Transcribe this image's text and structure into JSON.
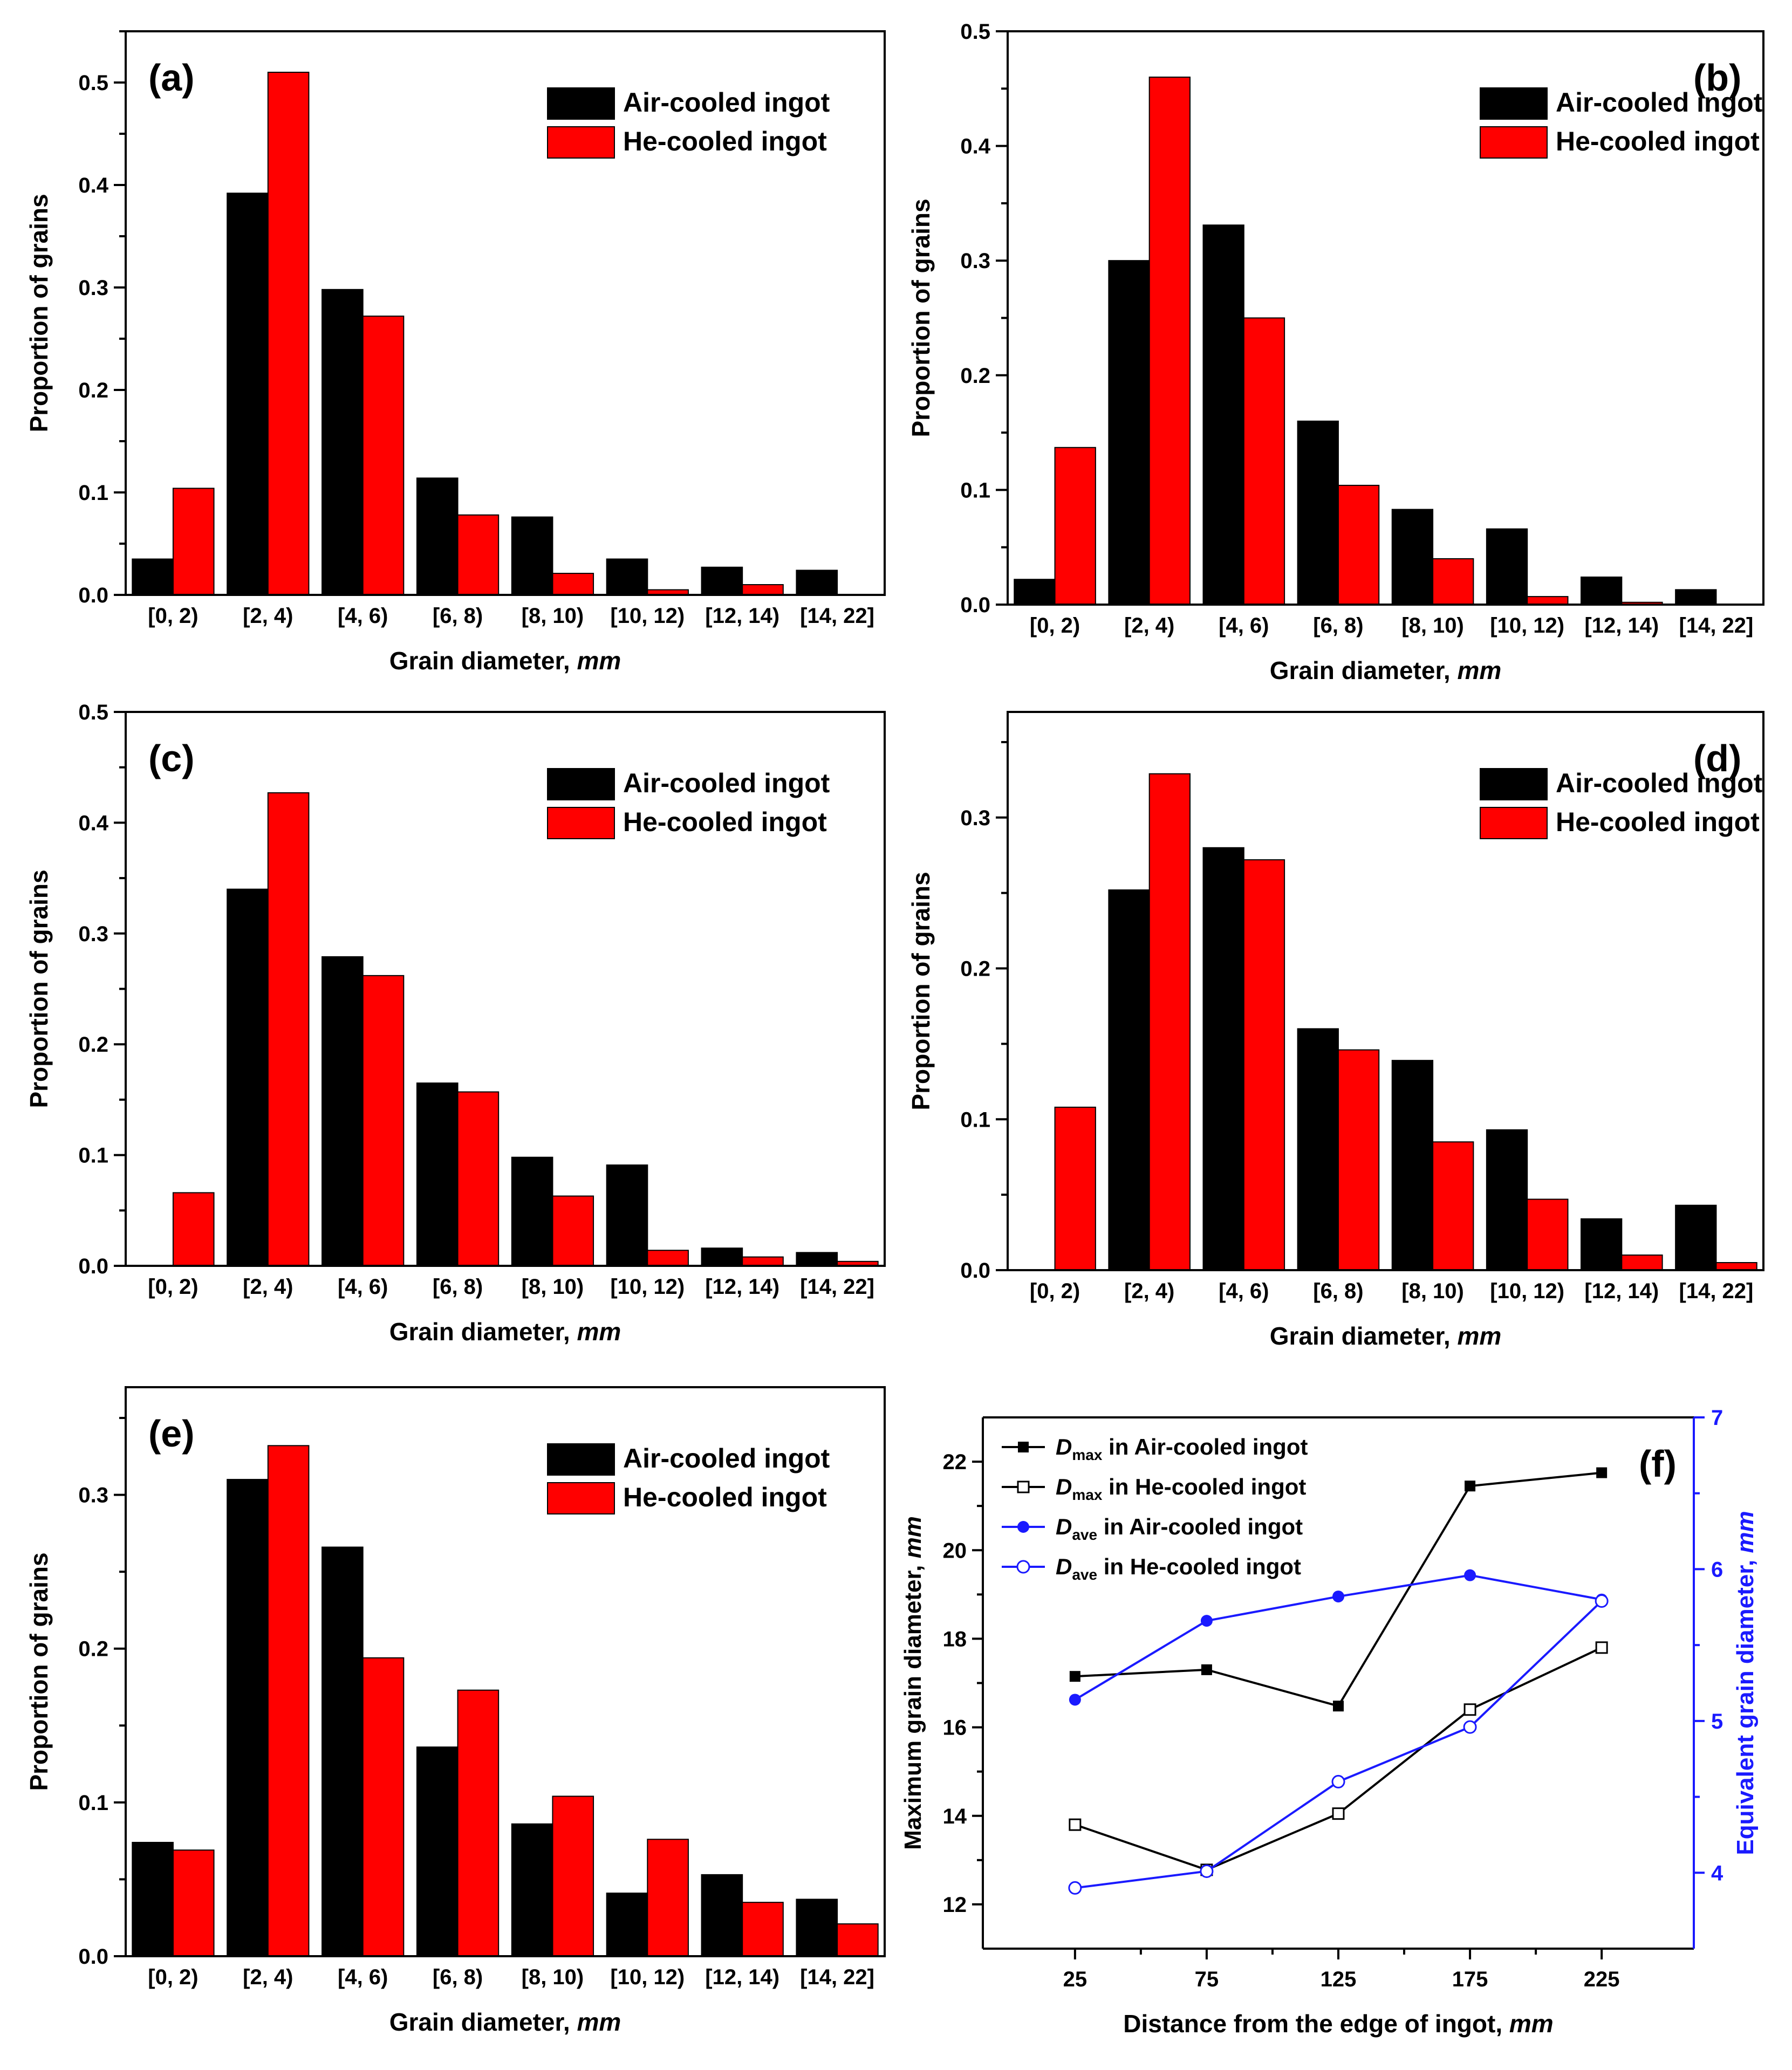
{
  "colors": {
    "air": "#000000",
    "he": "#ff0000",
    "blue": "#1a1aff",
    "axis": "#000000"
  },
  "chart_data": [
    {
      "panel_label": "(a)",
      "type": "bar",
      "title": "",
      "xlabel": "Grain diameter,",
      "xunit": "mm",
      "ylabel": "Proportion of grains",
      "ylim": [
        0,
        0.55
      ],
      "yticks": [
        "0.0",
        "0.1",
        "0.2",
        "0.3",
        "0.4",
        "0.5"
      ],
      "ytick_values": [
        0,
        0.1,
        0.2,
        0.3,
        0.4,
        0.5
      ],
      "categories": [
        "[0, 2)",
        "[2, 4)",
        "[4, 6)",
        "[6, 8)",
        "[8, 10)",
        "[10, 12)",
        "[12, 14)",
        "[14, 22]"
      ],
      "legend": {
        "position": "top-right"
      },
      "series": [
        {
          "name": "Air-cooled ingot",
          "values": [
            0.035,
            0.392,
            0.298,
            0.114,
            0.076,
            0.035,
            0.027,
            0.024
          ]
        },
        {
          "name": "He-cooled ingot",
          "values": [
            0.104,
            0.51,
            0.272,
            0.078,
            0.021,
            0.005,
            0.01,
            0.0
          ]
        }
      ]
    },
    {
      "panel_label": "(b)",
      "type": "bar",
      "title": "",
      "xlabel": "Grain diameter,",
      "xunit": "mm",
      "ylabel": "Proportion of grains",
      "ylim": [
        0,
        0.5
      ],
      "yticks": [
        "0.0",
        "0.1",
        "0.2",
        "0.3",
        "0.4",
        "0.5"
      ],
      "ytick_values": [
        0,
        0.1,
        0.2,
        0.3,
        0.4,
        0.5
      ],
      "categories": [
        "[0, 2)",
        "[2, 4)",
        "[4, 6)",
        "[6, 8)",
        "[8, 10)",
        "[10, 12)",
        "[12, 14)",
        "[14, 22]"
      ],
      "legend": {
        "position": "top-right"
      },
      "series": [
        {
          "name": "Air-cooled ingot",
          "values": [
            0.022,
            0.3,
            0.331,
            0.16,
            0.083,
            0.066,
            0.024,
            0.013
          ]
        },
        {
          "name": "He-cooled ingot",
          "values": [
            0.137,
            0.46,
            0.25,
            0.104,
            0.04,
            0.007,
            0.002,
            0.0
          ]
        }
      ]
    },
    {
      "panel_label": "(c)",
      "type": "bar",
      "title": "",
      "xlabel": "Grain diameter,",
      "xunit": "mm",
      "ylabel": "Proportion of grains",
      "ylim": [
        0,
        0.5
      ],
      "yticks": [
        "0.0",
        "0.1",
        "0.2",
        "0.3",
        "0.4",
        "0.5"
      ],
      "ytick_values": [
        0,
        0.1,
        0.2,
        0.3,
        0.4,
        0.5
      ],
      "categories": [
        "[0, 2)",
        "[2, 4)",
        "[4, 6)",
        "[6, 8)",
        "[8, 10)",
        "[10, 12)",
        "[12, 14)",
        "[14, 22]"
      ],
      "legend": {
        "position": "top-right"
      },
      "series": [
        {
          "name": "Air-cooled ingot",
          "values": [
            0.0,
            0.34,
            0.279,
            0.165,
            0.098,
            0.091,
            0.016,
            0.012
          ]
        },
        {
          "name": "He-cooled ingot",
          "values": [
            0.066,
            0.427,
            0.262,
            0.157,
            0.063,
            0.014,
            0.008,
            0.004
          ]
        }
      ]
    },
    {
      "panel_label": "(d)",
      "type": "bar",
      "title": "",
      "xlabel": "Grain diameter,",
      "xunit": "mm",
      "ylabel": "Proportion of grains",
      "ylim": [
        0,
        0.37
      ],
      "yticks": [
        "0.0",
        "0.1",
        "0.2",
        "0.3"
      ],
      "ytick_values": [
        0,
        0.1,
        0.2,
        0.3
      ],
      "categories": [
        "[0, 2)",
        "[2, 4)",
        "[4, 6)",
        "[6, 8)",
        "[8, 10)",
        "[10, 12)",
        "[12, 14)",
        "[14, 22]"
      ],
      "legend": {
        "position": "top-right"
      },
      "series": [
        {
          "name": "Air-cooled ingot",
          "values": [
            0.0,
            0.252,
            0.28,
            0.16,
            0.139,
            0.093,
            0.034,
            0.043
          ]
        },
        {
          "name": "He-cooled ingot",
          "values": [
            0.108,
            0.329,
            0.272,
            0.146,
            0.085,
            0.047,
            0.01,
            0.005
          ]
        }
      ]
    },
    {
      "panel_label": "(e)",
      "type": "bar",
      "title": "",
      "xlabel": "Grain diameter,",
      "xunit": "mm",
      "ylabel": "Proportion of grains",
      "ylim": [
        0,
        0.37
      ],
      "yticks": [
        "0.0",
        "0.1",
        "0.2",
        "0.3"
      ],
      "ytick_values": [
        0,
        0.1,
        0.2,
        0.3
      ],
      "categories": [
        "[0, 2)",
        "[2, 4)",
        "[4, 6)",
        "[6, 8)",
        "[8, 10)",
        "[10, 12)",
        "[12, 14)",
        "[14, 22]"
      ],
      "legend": {
        "position": "top-right"
      },
      "series": [
        {
          "name": "Air-cooled ingot",
          "values": [
            0.074,
            0.31,
            0.266,
            0.136,
            0.086,
            0.041,
            0.053,
            0.037
          ]
        },
        {
          "name": "He-cooled ingot",
          "values": [
            0.069,
            0.332,
            0.194,
            0.173,
            0.104,
            0.076,
            0.035,
            0.021
          ]
        }
      ]
    },
    {
      "panel_label": "(f)",
      "type": "line",
      "title": "",
      "xlabel": "Distance from the edge of ingot,",
      "xunit": "mm",
      "ylabel": "Maximum grain diameter,",
      "yunit": "mm",
      "ylabel_right": "Equivalent grain diameter,",
      "yunit_right": "mm",
      "x": [
        25,
        75,
        125,
        175,
        225
      ],
      "xticks": [
        "25",
        "75",
        "125",
        "175",
        "225"
      ],
      "xlim": [
        -10,
        260
      ],
      "ylim": [
        11.0,
        23.0
      ],
      "yticks": [
        "12",
        "14",
        "16",
        "18",
        "20",
        "22"
      ],
      "ytick_values": [
        12,
        14,
        16,
        18,
        20,
        22
      ],
      "ylim_right": [
        3.5,
        7.0
      ],
      "yticks_right": [
        "4",
        "5",
        "6",
        "7"
      ],
      "ytick_values_right": [
        4,
        5,
        6,
        7
      ],
      "legend": {
        "position": "top-left"
      },
      "series": [
        {
          "name_sym": "D",
          "name_sub": "max",
          "name_rest": " in Air-cooled ingot",
          "axis": "left",
          "marker": "filled-square",
          "color": "#000000",
          "values": [
            17.15,
            17.3,
            16.48,
            21.45,
            21.75
          ]
        },
        {
          "name_sym": "D",
          "name_sub": "max",
          "name_rest": " in He-cooled ingot",
          "axis": "left",
          "marker": "open-square",
          "color": "#000000",
          "values": [
            13.8,
            12.78,
            14.05,
            16.4,
            17.8
          ]
        },
        {
          "name_sym": "D",
          "name_sub": "ave",
          "name_rest": " in Air-cooled ingot",
          "axis": "right",
          "marker": "filled-circle",
          "color": "#1a1aff",
          "values": [
            5.14,
            5.66,
            5.82,
            5.96,
            5.8
          ]
        },
        {
          "name_sym": "D",
          "name_sub": "ave",
          "name_rest": " in He-cooled ingot",
          "axis": "right",
          "marker": "open-circle",
          "color": "#1a1aff",
          "values": [
            3.9,
            4.01,
            4.6,
            4.96,
            5.79
          ]
        }
      ]
    }
  ]
}
